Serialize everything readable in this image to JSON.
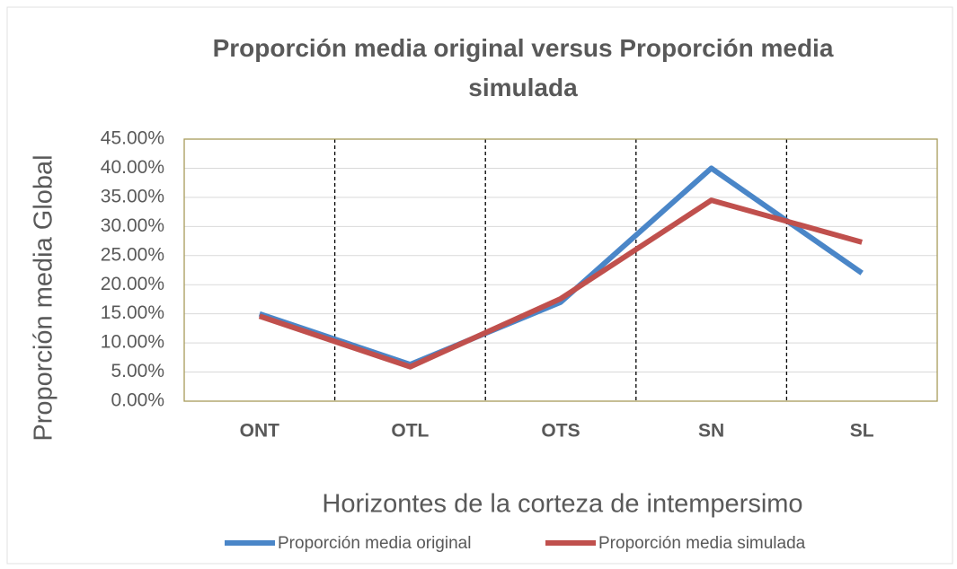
{
  "chart_data": {
    "type": "line",
    "title": "Proporción media original versus Proporción media simulada",
    "x_label": "Horizontes de la corteza de intempersimo",
    "y_label": "Proporción media Global",
    "categories": [
      "ONT",
      "OTL",
      "OTS",
      "SN",
      "SL"
    ],
    "series": [
      {
        "name": "Proporción media original",
        "color": "#4a86c8",
        "values": [
          15,
          6.3,
          17,
          40,
          22
        ]
      },
      {
        "name": "Proporción media simulada",
        "color": "#c0504d",
        "values": [
          14.6,
          5.9,
          17.6,
          34.5,
          27.3
        ]
      }
    ],
    "ylim": [
      0,
      45
    ],
    "yticks": [
      {
        "value": 0,
        "label": "0.00%"
      },
      {
        "value": 5,
        "label": "5.00%"
      },
      {
        "value": 10,
        "label": "10.00%"
      },
      {
        "value": 15,
        "label": "15.00%"
      },
      {
        "value": 20,
        "label": "20.00%"
      },
      {
        "value": 25,
        "label": "25.00%"
      },
      {
        "value": 30,
        "label": "30.00%"
      },
      {
        "value": 35,
        "label": "35.00%"
      },
      {
        "value": 40,
        "label": "40.00%"
      },
      {
        "value": 45,
        "label": "45.00%"
      }
    ],
    "grid": true,
    "legend": "bottom"
  }
}
